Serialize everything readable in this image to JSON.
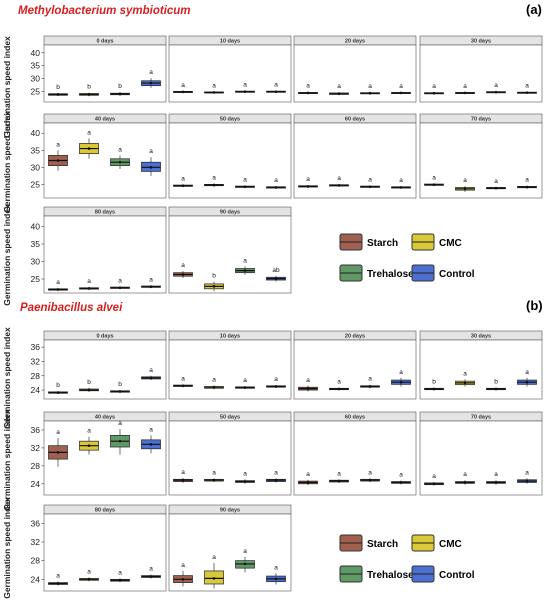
{
  "chart_data": [
    {
      "type": "box",
      "panel_label": "(a)",
      "title": "Methylobacterium symbioticum",
      "ylabel": "Germination speed index",
      "yticks": [
        25,
        30,
        35,
        40
      ],
      "ylim": [
        21,
        43
      ],
      "series_names": [
        "Starch",
        "CMC",
        "Trehalose",
        "Control"
      ],
      "facets": [
        {
          "label": "0 days",
          "boxes": [
            [
              23.3,
              23.6,
              23.9,
              24.2,
              24.5
            ],
            [
              23.2,
              23.6,
              23.9,
              24.3,
              24.6
            ],
            [
              23.4,
              23.8,
              24.1,
              24.4,
              24.8
            ],
            [
              26.5,
              27.3,
              28.3,
              29.2,
              30.2
            ]
          ],
          "sig": [
            "b",
            "b",
            "b",
            "a"
          ]
        },
        {
          "label": "10 days",
          "boxes": [
            [
              24.5,
              24.7,
              24.9,
              25.1,
              25.3
            ],
            [
              24.3,
              24.5,
              24.7,
              24.9,
              25.1
            ],
            [
              24.5,
              24.8,
              25.0,
              25.2,
              25.5
            ],
            [
              24.6,
              24.8,
              25.0,
              25.2,
              25.4
            ]
          ],
          "sig": [
            "a",
            "a",
            "a",
            "a"
          ]
        },
        {
          "label": "20 days",
          "boxes": [
            [
              24.0,
              24.3,
              24.5,
              24.7,
              25.0
            ],
            [
              23.6,
              23.9,
              24.2,
              24.5,
              24.8
            ],
            [
              23.9,
              24.2,
              24.4,
              24.6,
              24.9
            ],
            [
              24.1,
              24.3,
              24.5,
              24.7,
              24.9
            ]
          ],
          "sig": [
            "a",
            "a",
            "a",
            "a"
          ]
        },
        {
          "label": "30 days",
          "boxes": [
            [
              24.1,
              24.3,
              24.4,
              24.6,
              24.8
            ],
            [
              24.1,
              24.3,
              24.5,
              24.7,
              24.9
            ],
            [
              24.4,
              24.6,
              24.8,
              25.0,
              25.2
            ],
            [
              24.3,
              24.5,
              24.6,
              24.8,
              25.0
            ]
          ],
          "sig": [
            "a",
            "a",
            "a",
            "a"
          ]
        },
        {
          "label": "40 days",
          "boxes": [
            [
              29.0,
              30.5,
              32.0,
              33.5,
              35.0
            ],
            [
              32.5,
              34.0,
              35.5,
              37.0,
              38.5
            ],
            [
              29.5,
              30.5,
              31.5,
              32.5,
              33.5
            ],
            [
              27.5,
              28.8,
              30.0,
              31.5,
              33.0
            ]
          ],
          "sig": [
            "a",
            "a",
            "a",
            "a"
          ]
        },
        {
          "label": "50 days",
          "boxes": [
            [
              24.2,
              24.4,
              24.6,
              24.8,
              25.0
            ],
            [
              24.3,
              24.6,
              24.8,
              25.0,
              25.3
            ],
            [
              23.9,
              24.1,
              24.3,
              24.5,
              24.7
            ],
            [
              23.7,
              23.9,
              24.1,
              24.3,
              24.5
            ]
          ],
          "sig": [
            "a",
            "a",
            "a",
            "a"
          ]
        },
        {
          "label": "60 days",
          "boxes": [
            [
              24.0,
              24.2,
              24.4,
              24.6,
              24.8
            ],
            [
              24.3,
              24.5,
              24.7,
              24.9,
              25.1
            ],
            [
              23.9,
              24.1,
              24.3,
              24.5,
              24.7
            ],
            [
              23.7,
              23.9,
              24.1,
              24.3,
              24.5
            ]
          ],
          "sig": [
            "a",
            "a",
            "a",
            "a"
          ]
        },
        {
          "label": "70 days",
          "boxes": [
            [
              24.5,
              24.7,
              24.9,
              25.1,
              25.3
            ],
            [
              22.8,
              23.3,
              23.7,
              24.1,
              24.5
            ],
            [
              23.5,
              23.7,
              23.9,
              24.1,
              24.3
            ],
            [
              23.8,
              24.0,
              24.2,
              24.4,
              24.6
            ]
          ],
          "sig": [
            "a",
            "a",
            "a",
            "a"
          ]
        },
        {
          "label": "80 days",
          "boxes": [
            [
              21.6,
              21.8,
              22.0,
              22.2,
              22.4
            ],
            [
              21.9,
              22.1,
              22.3,
              22.5,
              22.7
            ],
            [
              22.1,
              22.3,
              22.5,
              22.7,
              22.9
            ],
            [
              22.4,
              22.6,
              22.8,
              23.0,
              23.2
            ]
          ],
          "sig": [
            "a",
            "a",
            "a",
            "a"
          ]
        },
        {
          "label": "90 days",
          "boxes": [
            [
              25.3,
              25.8,
              26.3,
              26.8,
              27.3
            ],
            [
              21.5,
              22.2,
              22.9,
              23.6,
              24.3
            ],
            [
              26.2,
              26.8,
              27.4,
              28.0,
              28.6
            ],
            [
              24.3,
              24.7,
              25.1,
              25.5,
              25.9
            ]
          ],
          "sig": [
            "a",
            "b",
            "a",
            "ab"
          ]
        }
      ]
    },
    {
      "type": "box",
      "panel_label": "(b)",
      "title": "Paenibacillus alvei",
      "ylabel": "Germination speed index",
      "yticks": [
        24,
        28,
        32,
        36
      ],
      "ylim": [
        21.5,
        38
      ],
      "series_names": [
        "Starch",
        "CMC",
        "Trehalose",
        "Control"
      ],
      "facets": [
        {
          "label": "0 days",
          "boxes": [
            [
              22.9,
              23.1,
              23.3,
              23.5,
              23.7
            ],
            [
              23.5,
              23.8,
              24.0,
              24.3,
              24.6
            ],
            [
              23.2,
              23.4,
              23.6,
              23.8,
              24.0
            ],
            [
              26.8,
              27.1,
              27.4,
              27.7,
              28.0
            ]
          ],
          "sig": [
            "b",
            "b",
            "b",
            "a"
          ]
        },
        {
          "label": "10 days",
          "boxes": [
            [
              24.8,
              25.0,
              25.2,
              25.4,
              25.6
            ],
            [
              24.2,
              24.5,
              24.8,
              25.0,
              25.3
            ],
            [
              24.3,
              24.5,
              24.7,
              24.9,
              25.1
            ],
            [
              24.6,
              24.8,
              25.0,
              25.2,
              25.4
            ]
          ],
          "sig": [
            "a",
            "a",
            "a",
            "a"
          ]
        },
        {
          "label": "20 days",
          "boxes": [
            [
              23.6,
              24.0,
              24.4,
              24.8,
              25.2
            ],
            [
              23.9,
              24.1,
              24.3,
              24.5,
              24.7
            ],
            [
              24.5,
              24.8,
              25.0,
              25.2,
              25.5
            ],
            [
              25.0,
              25.6,
              26.2,
              26.8,
              27.4
            ]
          ],
          "sig": [
            "a",
            "a",
            "a",
            "a"
          ]
        },
        {
          "label": "30 days",
          "boxes": [
            [
              23.9,
              24.1,
              24.3,
              24.5,
              24.7
            ],
            [
              25.0,
              25.5,
              26.0,
              26.5,
              27.0
            ],
            [
              23.9,
              24.1,
              24.3,
              24.5,
              24.7
            ],
            [
              25.0,
              25.6,
              26.2,
              26.8,
              27.4
            ]
          ],
          "sig": [
            "b",
            "a",
            "b",
            "a"
          ]
        },
        {
          "label": "40 days",
          "boxes": [
            [
              27.8,
              29.5,
              31.0,
              32.5,
              34.2
            ],
            [
              30.5,
              31.5,
              32.5,
              33.5,
              34.5
            ],
            [
              30.5,
              32.2,
              33.5,
              34.8,
              36.2
            ],
            [
              30.8,
              31.8,
              32.8,
              33.8,
              34.8
            ]
          ],
          "sig": [
            "a",
            "a",
            "a",
            "a"
          ]
        },
        {
          "label": "50 days",
          "boxes": [
            [
              24.2,
              24.5,
              24.8,
              25.0,
              25.3
            ],
            [
              24.4,
              24.6,
              24.8,
              25.0,
              25.2
            ],
            [
              24.0,
              24.3,
              24.5,
              24.7,
              25.0
            ],
            [
              24.3,
              24.5,
              24.8,
              25.0,
              25.2
            ]
          ],
          "sig": [
            "a",
            "a",
            "a",
            "a"
          ]
        },
        {
          "label": "60 days",
          "boxes": [
            [
              23.7,
              24.0,
              24.3,
              24.6,
              24.9
            ],
            [
              24.2,
              24.4,
              24.6,
              24.8,
              25.0
            ],
            [
              24.4,
              24.6,
              24.8,
              25.0,
              25.2
            ],
            [
              23.9,
              24.1,
              24.3,
              24.5,
              24.7
            ]
          ],
          "sig": [
            "a",
            "a",
            "a",
            "a"
          ]
        },
        {
          "label": "70 days",
          "boxes": [
            [
              23.6,
              23.8,
              24.0,
              24.2,
              24.4
            ],
            [
              23.8,
              24.1,
              24.3,
              24.5,
              24.8
            ],
            [
              23.8,
              24.1,
              24.3,
              24.5,
              24.8
            ],
            [
              24.0,
              24.3,
              24.6,
              24.9,
              25.2
            ]
          ],
          "sig": [
            "a",
            "a",
            "a",
            "a"
          ]
        },
        {
          "label": "80 days",
          "boxes": [
            [
              22.7,
              22.9,
              23.1,
              23.3,
              23.5
            ],
            [
              23.6,
              23.8,
              24.0,
              24.2,
              24.4
            ],
            [
              23.4,
              23.6,
              23.8,
              24.0,
              24.2
            ],
            [
              24.2,
              24.4,
              24.6,
              24.8,
              25.0
            ]
          ],
          "sig": [
            "a",
            "a",
            "a",
            "a"
          ]
        },
        {
          "label": "90 days",
          "boxes": [
            [
              22.5,
              23.3,
              24.0,
              24.8,
              25.8
            ],
            [
              22.0,
              23.0,
              24.2,
              25.8,
              27.5
            ],
            [
              25.5,
              26.4,
              27.3,
              28.0,
              28.8
            ],
            [
              22.9,
              23.5,
              24.1,
              24.7,
              25.3
            ]
          ],
          "sig": [
            "a",
            "a",
            "a",
            "a"
          ]
        }
      ]
    }
  ],
  "legend": {
    "items": [
      {
        "label": "Starch",
        "color": "#a06050"
      },
      {
        "label": "CMC",
        "color": "#d8c83a"
      },
      {
        "label": "Trehalose",
        "color": "#5f9a66"
      },
      {
        "label": "Control",
        "color": "#4d6fd0"
      }
    ]
  },
  "colors": {
    "strip_bg": "#e4e4e4",
    "frame": "#555555"
  }
}
